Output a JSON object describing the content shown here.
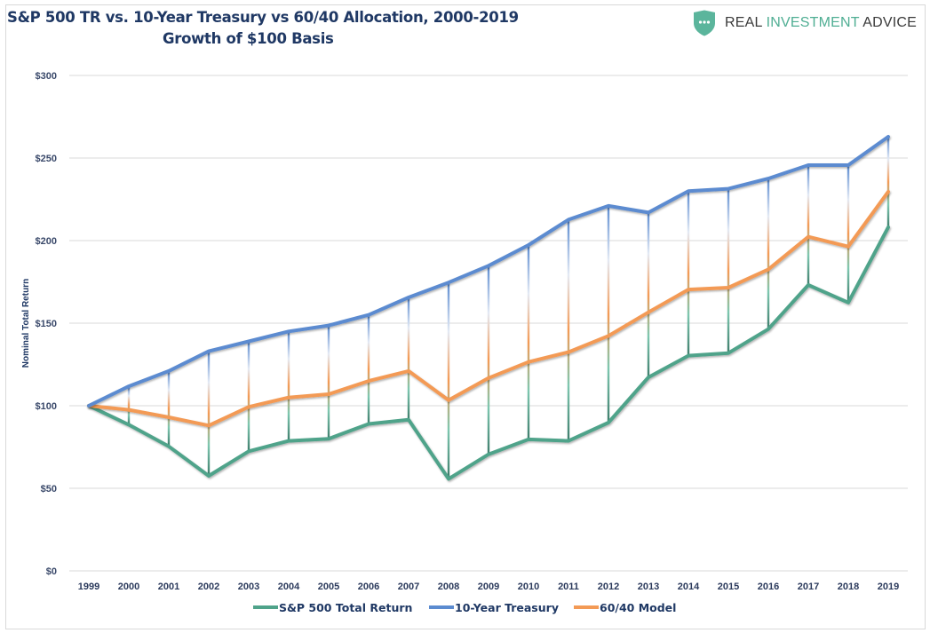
{
  "brand": {
    "name_part1": "REAL ",
    "name_part2": "INVESTMENT",
    "name_part3": " ADVICE",
    "icon": "shield-dots-icon",
    "accent_color": "#4fae93"
  },
  "chart_data": {
    "type": "line",
    "title": "S&P 500 TR vs. 10-Year Treasury vs 60/40 Allocation, 2000-2019",
    "subtitle": "Growth of $100 Basis",
    "xlabel": "",
    "ylabel": "Nominal Total Return",
    "ylim": [
      0,
      300
    ],
    "yticks": [
      0,
      50,
      100,
      150,
      200,
      250,
      300
    ],
    "ytick_labels": [
      "$0",
      "$50",
      "$100",
      "$150",
      "$200",
      "$250",
      "$300"
    ],
    "grid": true,
    "legend_position": "bottom",
    "drop_lines": true,
    "x": [
      "1999",
      "2000",
      "2001",
      "2002",
      "2003",
      "2004",
      "2005",
      "2006",
      "2007",
      "2008",
      "2009",
      "2010",
      "2011",
      "2012",
      "2013",
      "2014",
      "2015",
      "2016",
      "2017",
      "2018",
      "2019"
    ],
    "series": [
      {
        "name": "S&P 500 Total Return",
        "color": "#4fa38a",
        "values": [
          100,
          88.5,
          75.4,
          57.5,
          72.4,
          78.7,
          80.0,
          89.0,
          91.5,
          55.7,
          70.6,
          79.6,
          78.7,
          89.8,
          117.2,
          130.3,
          131.9,
          146.4,
          173.1,
          162.5,
          208.1
        ]
      },
      {
        "name": "10-Year Treasury",
        "color": "#5b8bd0",
        "values": [
          100,
          111.8,
          121.0,
          133.0,
          139.0,
          145.0,
          148.6,
          155.0,
          165.6,
          174.6,
          184.8,
          197.3,
          212.7,
          221.0,
          217.0,
          230.0,
          231.4,
          237.6,
          245.7,
          245.7,
          262.9
        ]
      },
      {
        "name": "60/40 Model",
        "color": "#f39a55",
        "values": [
          100,
          97.5,
          93.0,
          88.0,
          99.3,
          105.0,
          107.0,
          115.0,
          121.0,
          103.4,
          116.8,
          126.5,
          132.5,
          142.3,
          156.6,
          170.4,
          171.5,
          182.6,
          202.3,
          196.4,
          229.6
        ]
      }
    ]
  }
}
